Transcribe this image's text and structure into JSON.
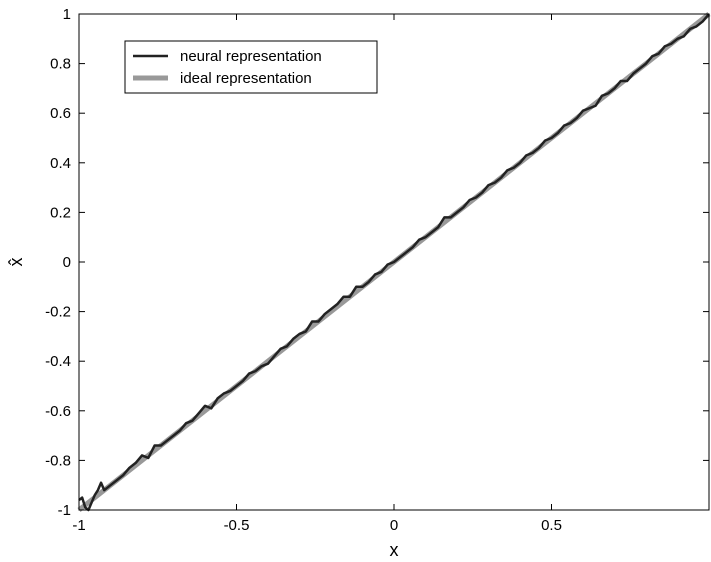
{
  "chart_data": {
    "type": "line",
    "title": "",
    "xlabel": "x",
    "ylabel": "x̂",
    "xlim": [
      -1,
      1
    ],
    "ylim": [
      -1,
      1
    ],
    "grid": false,
    "legend_position": "top-left",
    "x_ticks": [
      -1,
      -0.5,
      0,
      0.5
    ],
    "y_ticks": [
      -1,
      -0.8,
      -0.6,
      -0.4,
      -0.2,
      0,
      0.2,
      0.4,
      0.6,
      0.8,
      1
    ],
    "x_tick_labels": [
      "-1",
      "-0.5",
      "0",
      "0.5"
    ],
    "y_tick_labels": [
      "-1",
      "-0.8",
      "-0.6",
      "-0.4",
      "-0.2",
      "0",
      "0.2",
      "0.4",
      "0.6",
      "0.8",
      "1"
    ],
    "series": [
      {
        "name": "neural representation",
        "color": "#222222",
        "x": [
          -1,
          -0.99,
          -0.98,
          -0.97,
          -0.96,
          -0.95,
          -0.94,
          -0.93,
          -0.92,
          -0.91,
          -0.9,
          -0.88,
          -0.86,
          -0.84,
          -0.82,
          -0.8,
          -0.78,
          -0.76,
          -0.74,
          -0.72,
          -0.7,
          -0.68,
          -0.66,
          -0.64,
          -0.62,
          -0.6,
          -0.58,
          -0.56,
          -0.54,
          -0.52,
          -0.5,
          -0.48,
          -0.46,
          -0.44,
          -0.42,
          -0.4,
          -0.38,
          -0.36,
          -0.34,
          -0.32,
          -0.3,
          -0.28,
          -0.26,
          -0.24,
          -0.22,
          -0.2,
          -0.18,
          -0.16,
          -0.14,
          -0.12,
          -0.1,
          -0.08,
          -0.06,
          -0.04,
          -0.02,
          0,
          0.02,
          0.04,
          0.06,
          0.08,
          0.1,
          0.12,
          0.14,
          0.16,
          0.18,
          0.2,
          0.22,
          0.24,
          0.26,
          0.28,
          0.3,
          0.32,
          0.34,
          0.36,
          0.38,
          0.4,
          0.42,
          0.44,
          0.46,
          0.48,
          0.5,
          0.52,
          0.54,
          0.56,
          0.58,
          0.6,
          0.62,
          0.64,
          0.66,
          0.68,
          0.7,
          0.72,
          0.74,
          0.76,
          0.78,
          0.8,
          0.82,
          0.84,
          0.86,
          0.88,
          0.9,
          0.92,
          0.94,
          0.96,
          0.98,
          1.0
        ],
        "y": [
          -0.96,
          -0.95,
          -0.99,
          -1.0,
          -0.97,
          -0.94,
          -0.92,
          -0.89,
          -0.92,
          -0.91,
          -0.9,
          -0.88,
          -0.86,
          -0.83,
          -0.81,
          -0.78,
          -0.79,
          -0.74,
          -0.74,
          -0.72,
          -0.7,
          -0.68,
          -0.65,
          -0.64,
          -0.61,
          -0.58,
          -0.59,
          -0.55,
          -0.53,
          -0.52,
          -0.5,
          -0.48,
          -0.45,
          -0.44,
          -0.42,
          -0.41,
          -0.38,
          -0.35,
          -0.34,
          -0.31,
          -0.29,
          -0.28,
          -0.24,
          -0.24,
          -0.21,
          -0.19,
          -0.17,
          -0.14,
          -0.14,
          -0.1,
          -0.1,
          -0.08,
          -0.05,
          -0.04,
          -0.01,
          0.0,
          0.02,
          0.04,
          0.06,
          0.09,
          0.1,
          0.12,
          0.14,
          0.18,
          0.18,
          0.2,
          0.22,
          0.25,
          0.26,
          0.28,
          0.31,
          0.32,
          0.34,
          0.37,
          0.38,
          0.4,
          0.43,
          0.44,
          0.46,
          0.49,
          0.5,
          0.52,
          0.55,
          0.56,
          0.58,
          0.61,
          0.62,
          0.63,
          0.67,
          0.68,
          0.7,
          0.73,
          0.73,
          0.76,
          0.78,
          0.8,
          0.83,
          0.84,
          0.87,
          0.88,
          0.9,
          0.91,
          0.94,
          0.95,
          0.97,
          1.0
        ]
      },
      {
        "name": "ideal representation",
        "color": "#999999",
        "x": [
          -1,
          1
        ],
        "y": [
          -1,
          1
        ]
      }
    ]
  }
}
